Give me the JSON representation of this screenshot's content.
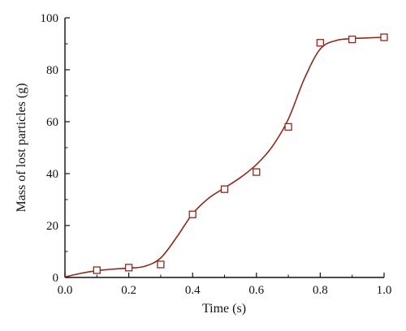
{
  "chart_data": {
    "type": "scatter",
    "xlabel": "Time (s)",
    "ylabel": "Mass of lost particles (g)",
    "xlim": [
      0.0,
      1.0
    ],
    "ylim": [
      0,
      100
    ],
    "x_ticks": [
      0.0,
      0.2,
      0.4,
      0.6,
      0.8,
      1.0
    ],
    "x_tick_labels": [
      "0.0",
      "0.2",
      "0.4",
      "0.6",
      "0.8",
      "1.0"
    ],
    "y_ticks": [
      0,
      20,
      40,
      60,
      80,
      100
    ],
    "y_tick_labels": [
      "0",
      "20",
      "40",
      "60",
      "80",
      "100"
    ],
    "grid": false,
    "legend": "none",
    "series": [
      {
        "marker": "open-square",
        "color": "#8b2a1a",
        "x": [
          0.1,
          0.2,
          0.3,
          0.4,
          0.5,
          0.6,
          0.7,
          0.8,
          0.9,
          1.0
        ],
        "y": [
          2.8,
          3.8,
          5.0,
          24.3,
          34.0,
          40.6,
          58.0,
          90.4,
          91.7,
          92.5
        ]
      }
    ],
    "fit_curve": {
      "color": "#8b2a1a",
      "x": [
        0.0,
        0.05,
        0.1,
        0.15,
        0.2,
        0.25,
        0.3,
        0.35,
        0.4,
        0.45,
        0.5,
        0.55,
        0.6,
        0.65,
        0.7,
        0.75,
        0.8,
        0.85,
        0.9,
        0.95,
        1.0
      ],
      "y": [
        0.2,
        1.6,
        2.6,
        3.2,
        3.6,
        4.3,
        7.5,
        15.5,
        24.5,
        30.5,
        34.5,
        38.5,
        43.5,
        50.5,
        61.0,
        76.5,
        88.0,
        91.3,
        92.0,
        92.3,
        92.5
      ]
    }
  }
}
